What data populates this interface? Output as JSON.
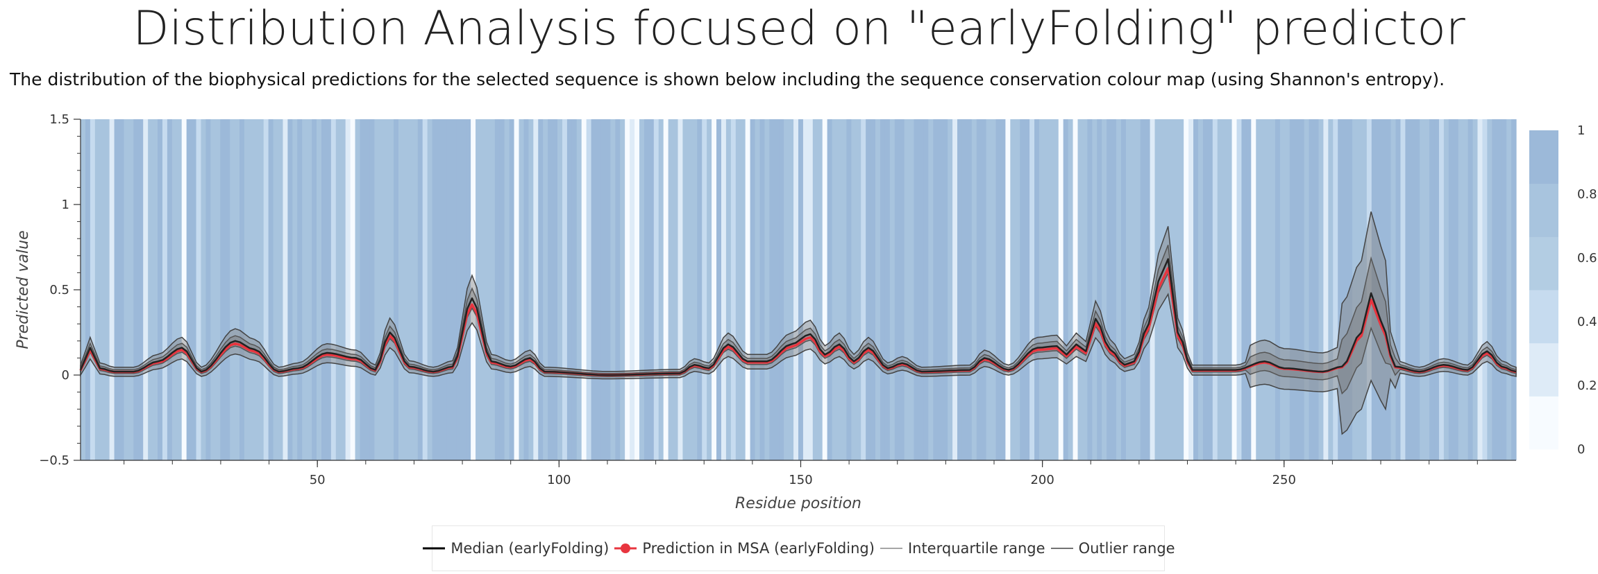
{
  "title": "Distribution Analysis focused on \"earlyFolding\" predictor",
  "subtitle": "The distribution of the biophysical predictions for the selected sequence is shown below including the sequence conservation colour map (using Shannon's entropy).",
  "chart_data": {
    "type": "line",
    "xlabel": "Residue position",
    "ylabel": "Predicted value",
    "xlim": [
      1,
      298
    ],
    "ylim": [
      -0.5,
      1.5
    ],
    "x_ticks": [
      50,
      100,
      150,
      200,
      250
    ],
    "y_ticks": [
      -0.5,
      0,
      0.5,
      1,
      1.5
    ],
    "y_tick_labels": [
      "−0.5",
      "0",
      "0.5",
      "1",
      "1.5"
    ],
    "colorbar": {
      "ticks": [
        0,
        0.2,
        0.4,
        0.6,
        0.8,
        1
      ],
      "tick_labels": [
        "0",
        "0.2",
        "0.4",
        "0.6",
        "0.8",
        "1"
      ],
      "colors": [
        "#f7fbff",
        "#deebf7",
        "#c6dbef",
        "#b3cde3",
        "#a8c4de",
        "#9cb9d9"
      ]
    },
    "peaks": [
      {
        "x": 1,
        "y": 0.03
      },
      {
        "x": 3,
        "y": 0.16
      },
      {
        "x": 5,
        "y": 0.04
      },
      {
        "x": 8,
        "y": 0.02
      },
      {
        "x": 12,
        "y": 0.02
      },
      {
        "x": 17,
        "y": 0.08
      },
      {
        "x": 22,
        "y": 0.16
      },
      {
        "x": 26,
        "y": 0.02
      },
      {
        "x": 33,
        "y": 0.2
      },
      {
        "x": 37,
        "y": 0.15
      },
      {
        "x": 42,
        "y": 0.02
      },
      {
        "x": 46,
        "y": 0.04
      },
      {
        "x": 52,
        "y": 0.13
      },
      {
        "x": 58,
        "y": 0.1
      },
      {
        "x": 62,
        "y": 0.03
      },
      {
        "x": 65,
        "y": 0.25
      },
      {
        "x": 69,
        "y": 0.05
      },
      {
        "x": 74,
        "y": 0.02
      },
      {
        "x": 78,
        "y": 0.05
      },
      {
        "x": 82,
        "y": 0.45
      },
      {
        "x": 86,
        "y": 0.08
      },
      {
        "x": 90,
        "y": 0.05
      },
      {
        "x": 94,
        "y": 0.1
      },
      {
        "x": 97,
        "y": 0.02
      },
      {
        "x": 110,
        "y": 0.0
      },
      {
        "x": 125,
        "y": 0.01
      },
      {
        "x": 128,
        "y": 0.06
      },
      {
        "x": 131,
        "y": 0.04
      },
      {
        "x": 135,
        "y": 0.18
      },
      {
        "x": 139,
        "y": 0.08
      },
      {
        "x": 143,
        "y": 0.08
      },
      {
        "x": 148,
        "y": 0.18
      },
      {
        "x": 152,
        "y": 0.24
      },
      {
        "x": 155,
        "y": 0.12
      },
      {
        "x": 158,
        "y": 0.18
      },
      {
        "x": 161,
        "y": 0.08
      },
      {
        "x": 164,
        "y": 0.16
      },
      {
        "x": 168,
        "y": 0.04
      },
      {
        "x": 171,
        "y": 0.07
      },
      {
        "x": 175,
        "y": 0.02
      },
      {
        "x": 185,
        "y": 0.03
      },
      {
        "x": 188,
        "y": 0.1
      },
      {
        "x": 193,
        "y": 0.03
      },
      {
        "x": 199,
        "y": 0.16
      },
      {
        "x": 203,
        "y": 0.17
      },
      {
        "x": 205,
        "y": 0.12
      },
      {
        "x": 207,
        "y": 0.18
      },
      {
        "x": 209,
        "y": 0.14
      },
      {
        "x": 211,
        "y": 0.33
      },
      {
        "x": 214,
        "y": 0.15
      },
      {
        "x": 217,
        "y": 0.06
      },
      {
        "x": 219,
        "y": 0.08
      },
      {
        "x": 222,
        "y": 0.3
      },
      {
        "x": 224,
        "y": 0.55
      },
      {
        "x": 226,
        "y": 0.68
      },
      {
        "x": 228,
        "y": 0.25
      },
      {
        "x": 231,
        "y": 0.03
      },
      {
        "x": 240,
        "y": 0.03
      },
      {
        "x": 246,
        "y": 0.08
      },
      {
        "x": 250,
        "y": 0.04
      },
      {
        "x": 258,
        "y": 0.02
      },
      {
        "x": 262,
        "y": 0.05
      },
      {
        "x": 266,
        "y": 0.25
      },
      {
        "x": 268,
        "y": 0.48
      },
      {
        "x": 270,
        "y": 0.32
      },
      {
        "x": 273,
        "y": 0.05
      },
      {
        "x": 278,
        "y": 0.02
      },
      {
        "x": 283,
        "y": 0.06
      },
      {
        "x": 288,
        "y": 0.03
      },
      {
        "x": 292,
        "y": 0.14
      },
      {
        "x": 295,
        "y": 0.05
      },
      {
        "x": 298,
        "y": 0.02
      }
    ],
    "legend": [
      {
        "label": "Median (earlyFolding)",
        "color": "#000000",
        "style": "line"
      },
      {
        "label": "Prediction in MSA (earlyFolding)",
        "color": "#e8353f",
        "style": "line-marker"
      },
      {
        "label": "Interquartile range",
        "color": "#888888",
        "style": "thin-line"
      },
      {
        "label": "Outlier range",
        "color": "#444444",
        "style": "thin-line"
      }
    ],
    "legend_position": "bottom"
  }
}
